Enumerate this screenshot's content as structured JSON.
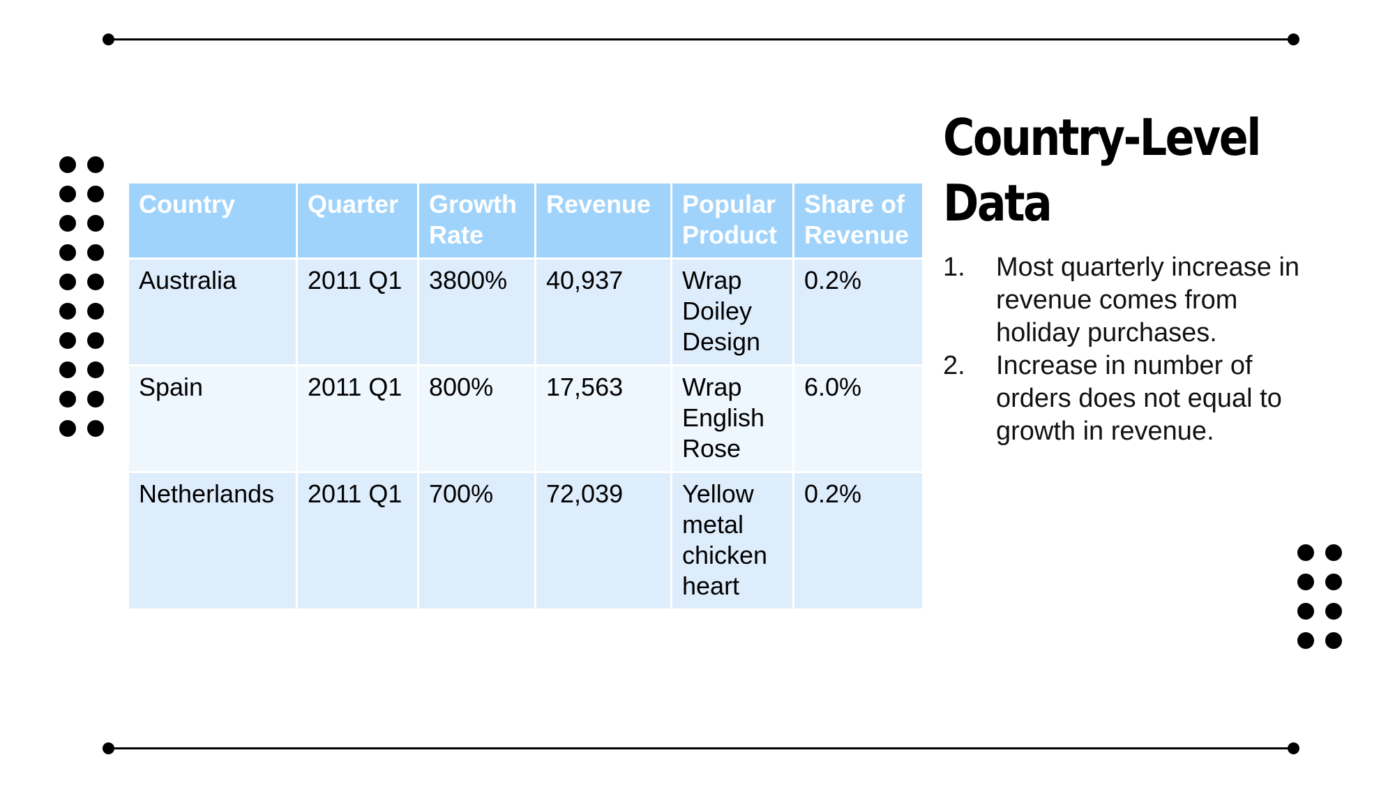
{
  "table": {
    "headers": [
      "Country",
      "Quarter",
      "Growth Rate",
      "Revenue",
      "Popular Product",
      "Share of Revenue"
    ],
    "rows": [
      [
        "Australia",
        "2011 Q1",
        "3800%",
        "40,937",
        "Wrap Doiley Design",
        "0.2%"
      ],
      [
        "Spain",
        "2011 Q1",
        "800%",
        "17,563",
        "Wrap English Rose",
        "6.0%"
      ],
      [
        "Netherlands",
        "2011 Q1",
        "700%",
        "72,039",
        "Yellow metal chicken heart",
        "0.2%"
      ]
    ]
  },
  "side": {
    "title": "Country-Level Data",
    "points": [
      {
        "num": "1.",
        "text": "Most quarterly increase in revenue comes from holiday purchases."
      },
      {
        "num": "2.",
        "text": "Increase in number of orders does not equal to growth in revenue."
      }
    ]
  },
  "colors": {
    "header_bg": "#9fd3fb",
    "row_bg_dark": "#deedfc",
    "row_bg_light": "#eef6fe",
    "ink": "#000000"
  }
}
